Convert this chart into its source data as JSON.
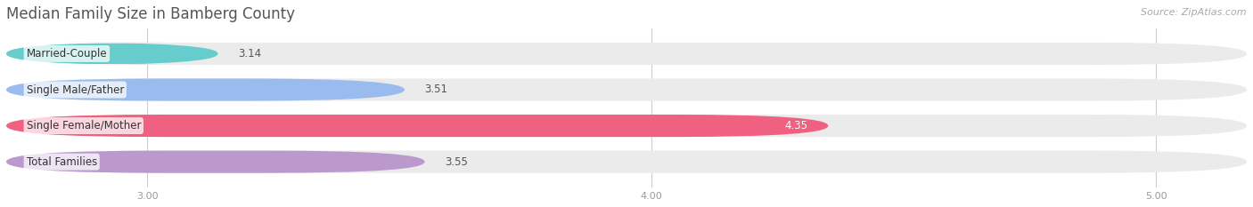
{
  "title": "Median Family Size in Bamberg County",
  "source": "Source: ZipAtlas.com",
  "categories": [
    "Married-Couple",
    "Single Male/Father",
    "Single Female/Mother",
    "Total Families"
  ],
  "values": [
    3.14,
    3.51,
    4.35,
    3.55
  ],
  "bar_colors": [
    "#66cccc",
    "#99bbee",
    "#f06080",
    "#bb99cc"
  ],
  "value_inside": [
    false,
    false,
    true,
    false
  ],
  "xlim_left": 2.72,
  "xlim_right": 5.18,
  "xticks": [
    3.0,
    4.0,
    5.0
  ],
  "xtick_labels": [
    "3.00",
    "4.00",
    "5.00"
  ],
  "bar_height": 0.62,
  "bar_gap": 1.0,
  "background_color": "#ffffff",
  "bar_bg_color": "#ebebeb",
  "title_fontsize": 12,
  "label_fontsize": 8.5,
  "value_fontsize": 8.5,
  "tick_fontsize": 8,
  "source_fontsize": 8
}
